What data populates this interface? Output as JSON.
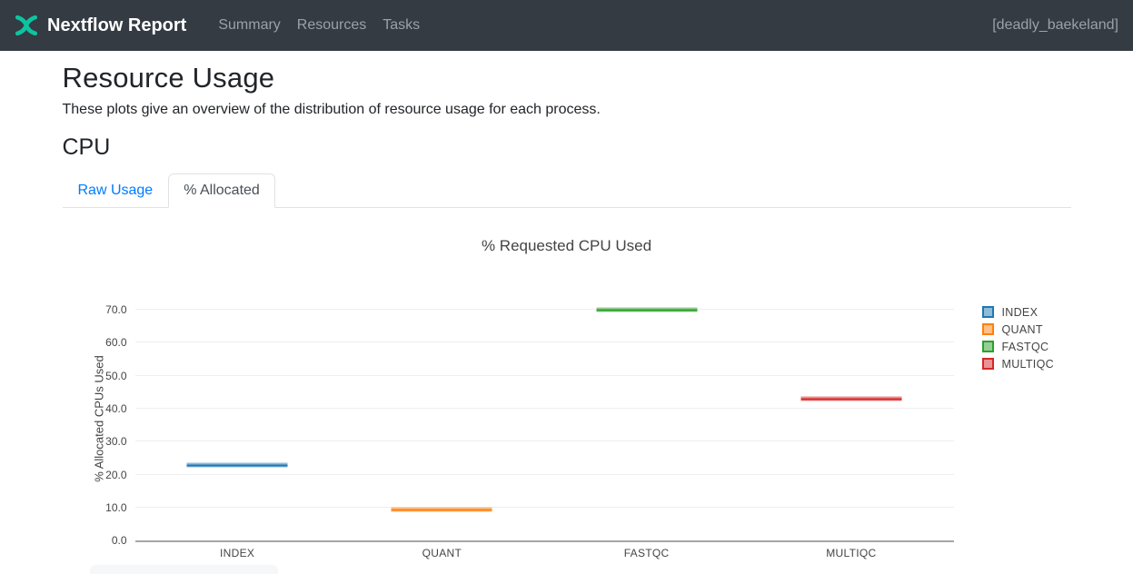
{
  "navbar": {
    "brand": "Nextflow Report",
    "items": [
      {
        "label": "Summary"
      },
      {
        "label": "Resources"
      },
      {
        "label": "Tasks"
      }
    ],
    "run_name": "[deadly_baekeland]"
  },
  "page": {
    "title": "Resource Usage",
    "description": "These plots give an overview of the distribution of resource usage for each process.",
    "section_heading": "CPU"
  },
  "tabs": [
    {
      "label": "Raw Usage",
      "active": false
    },
    {
      "label": "% Allocated",
      "active": true
    }
  ],
  "chart_data": {
    "type": "box",
    "title": "% Requested CPU Used",
    "ylabel": "% Allocated CPUs Used",
    "xlabel": "",
    "categories": [
      "INDEX",
      "QUANT",
      "FASTQC",
      "MULTIQC"
    ],
    "series": [
      {
        "name": "INDEX",
        "color": "#1f77b4",
        "median": 22.8
      },
      {
        "name": "QUANT",
        "color": "#ff7f0e",
        "median": 9.3
      },
      {
        "name": "FASTQC",
        "color": "#2ca02c",
        "median": 70.0
      },
      {
        "name": "MULTIQC",
        "color": "#d62728",
        "median": 42.9
      }
    ],
    "ytick_values": [
      0,
      10,
      20,
      30,
      40,
      50,
      60,
      70
    ],
    "ytick_labels": [
      "0.0",
      "10.0",
      "20.0",
      "30.0",
      "40.0",
      "50.0",
      "60.0",
      "70.0"
    ],
    "ylim": [
      0,
      74.2
    ],
    "grid": true,
    "legend_position": "right"
  },
  "colors": {
    "navbar_bg": "#343b43",
    "brand_teal": "#0ec4a0",
    "link_blue": "#007bff",
    "tab_border": "#dee2e6",
    "chart_text": "#444444",
    "gridline": "#eeeeee",
    "axis_line": "#a6a6a6"
  }
}
